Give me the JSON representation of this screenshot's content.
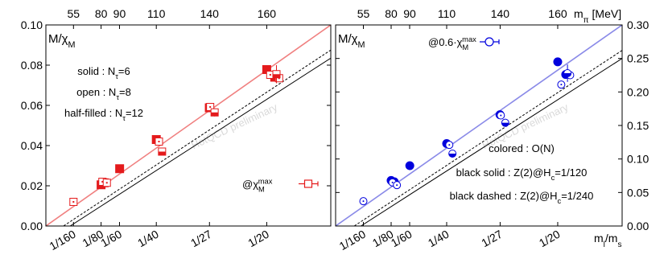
{
  "chart_data": [
    {
      "type": "scatter",
      "panel": "left",
      "ylabel_main": "M/χ",
      "ylabel_sub": "M",
      "xlabel_main": "",
      "xlabel_sub": "",
      "xlabel_sep": "",
      "top_axis_label_main": "",
      "top_axis_label_sub": "",
      "top_axis_label_unit": "",
      "x_scale": "linear in m_l/m_s",
      "xlim": [
        0.0,
        0.0645
      ],
      "ylim": [
        0.0,
        0.1
      ],
      "yticks": [
        "0.00",
        "0.02",
        "0.04",
        "0.06",
        "0.08",
        "0.10"
      ],
      "ytick_values": [
        0.0,
        0.02,
        0.04,
        0.06,
        0.08,
        0.1
      ],
      "xtick_labels": [
        "1/160",
        "1/80",
        "1/60",
        "1/40",
        "1/27",
        "1/20"
      ],
      "xtick_values": [
        0.00625,
        0.0125,
        0.016667,
        0.025,
        0.037037,
        0.05
      ],
      "top_tick_labels": [
        "55",
        "80",
        "90",
        "110",
        "140",
        "160"
      ],
      "top_tick_values": [
        0.00625,
        0.0125,
        0.016667,
        0.025,
        0.037037,
        0.05
      ],
      "grid": false,
      "legend": [
        {
          "text_main": "solid : N",
          "text_sub": "τ",
          "text_tail": "=6"
        },
        {
          "text_main": "open : N",
          "text_sub": "τ",
          "text_tail": "=8"
        },
        {
          "text_main": "half-filled : N",
          "text_sub": "τ",
          "text_tail": "=12"
        }
      ],
      "marker_legend": {
        "text_main": "@χ",
        "text_sub": "M",
        "text_sup": "max"
      },
      "watermark": "HotQCD preliminary",
      "series": [
        {
          "name": "",
          "style": "solid",
          "marker": "square",
          "color": "#e41a1c",
          "x": [
            0.0125,
            0.0132,
            0.0167,
            0.025,
            0.037,
            0.05,
            0.0518
          ],
          "y": [
            0.0205,
            0.0215,
            0.0285,
            0.043,
            0.0588,
            0.0778,
            0.074
          ]
        },
        {
          "name": "",
          "style": "open",
          "marker": "square",
          "color": "#e41a1c",
          "x": [
            0.00625,
            0.0128,
            0.0138,
            0.0256,
            0.0372,
            0.0508,
            0.0528
          ],
          "y": [
            0.012,
            0.022,
            0.0215,
            0.042,
            0.0592,
            0.0752,
            0.0735
          ]
        },
        {
          "name": "",
          "style": "half-filled",
          "marker": "square",
          "color": "#e41a1c",
          "x": [
            0.0263,
            0.0382,
            0.0522
          ],
          "y": [
            0.037,
            0.0565,
            0.0755
          ],
          "yerr": [
            0.0015,
            0.002,
            0.0045
          ]
        }
      ],
      "fit_lines": [
        {
          "style": "solid",
          "color": "#f08080",
          "x": [
            0.0,
            0.0645
          ],
          "y": [
            0.0,
            0.1
          ]
        },
        {
          "style": "dashed",
          "color": "#000000",
          "x": [
            0.004,
            0.0645
          ],
          "y": [
            0.0,
            0.0875
          ]
        },
        {
          "style": "solid",
          "color": "#000000",
          "x": [
            0.0055,
            0.0645
          ],
          "y": [
            0.0,
            0.0835
          ]
        }
      ]
    },
    {
      "type": "scatter",
      "panel": "right",
      "ylabel_main": "M/χ",
      "ylabel_sub": "M",
      "xlabel_main": "m",
      "xlabel_sub": "l",
      "xlabel_sep": "/m",
      "xlabel_sub2": "s",
      "top_axis_label_main": "m",
      "top_axis_label_sub": "π",
      "top_axis_label_unit": " [MeV]",
      "x_scale": "linear in m_l/m_s",
      "xlim": [
        0.0,
        0.0645
      ],
      "ylim": [
        0.0,
        0.3
      ],
      "yticks": [
        "0.00",
        "0.05",
        "0.10",
        "0.15",
        "0.20",
        "0.25",
        "0.30"
      ],
      "ytick_values": [
        0.0,
        0.05,
        0.1,
        0.15,
        0.2,
        0.25,
        0.3
      ],
      "xtick_labels": [
        "1/160",
        "1/80",
        "1/60",
        "1/40",
        "1/27",
        "1/20"
      ],
      "xtick_values": [
        0.00625,
        0.0125,
        0.016667,
        0.025,
        0.037037,
        0.05
      ],
      "top_tick_labels": [
        "55",
        "80",
        "90",
        "110",
        "140",
        "160"
      ],
      "top_tick_values": [
        0.00625,
        0.0125,
        0.016667,
        0.025,
        0.037037,
        0.05
      ],
      "grid": false,
      "legend": [
        {
          "text_main": "colored : O(N)",
          "text_sub": "",
          "text_tail": ""
        },
        {
          "text_main": "black solid : Z(2)@H",
          "text_sub": "c",
          "text_tail": "=1/120"
        },
        {
          "text_main": "black dashed : Z(2)@H",
          "text_sub": "c",
          "text_tail": "=1/240"
        }
      ],
      "marker_legend": {
        "text_main": "@0.6·χ",
        "text_sub": "M",
        "text_sup": "max"
      },
      "watermark": "HotQCD preliminary",
      "series": [
        {
          "name": "",
          "style": "solid",
          "marker": "circle",
          "color": "#0000dd",
          "x": [
            0.0125,
            0.0132,
            0.0167,
            0.025,
            0.037,
            0.05,
            0.0518
          ],
          "y": [
            0.068,
            0.066,
            0.09,
            0.123,
            0.166,
            0.245,
            0.226
          ]
        },
        {
          "name": "",
          "style": "open",
          "marker": "circle",
          "color": "#0000dd",
          "x": [
            0.00625,
            0.0128,
            0.0138,
            0.0256,
            0.0372,
            0.0508,
            0.0528
          ],
          "y": [
            0.037,
            0.065,
            0.061,
            0.121,
            0.165,
            0.211,
            0.225
          ]
        },
        {
          "name": "",
          "style": "half-filled",
          "marker": "circle",
          "color": "#0000dd",
          "x": [
            0.0263,
            0.0382,
            0.0522
          ],
          "y": [
            0.108,
            0.154,
            0.228
          ],
          "yerr": [
            0.004,
            0.005,
            0.013
          ]
        }
      ],
      "fit_lines": [
        {
          "style": "solid",
          "color": "#8a8ae8",
          "x": [
            0.0,
            0.0645
          ],
          "y": [
            0.0,
            0.3
          ]
        },
        {
          "style": "dashed",
          "color": "#000000",
          "x": [
            0.0042,
            0.0645
          ],
          "y": [
            0.0,
            0.262
          ]
        },
        {
          "style": "solid",
          "color": "#000000",
          "x": [
            0.0057,
            0.0645
          ],
          "y": [
            0.0,
            0.25
          ]
        }
      ]
    }
  ]
}
